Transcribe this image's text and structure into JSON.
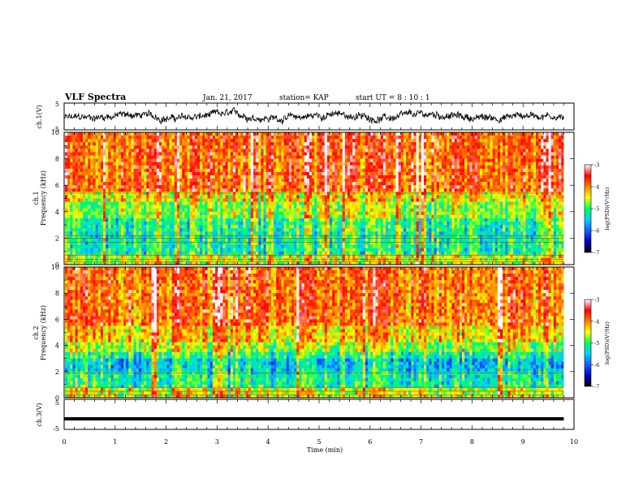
{
  "header": {
    "title": "VLF Spectra",
    "date": "Jan. 21, 2017",
    "station": "station= KAP",
    "start": "start UT =  8 : 10 : 1"
  },
  "chart_data": [
    {
      "type": "line",
      "ylabel": "ch.1(V)",
      "ylim": [
        -5,
        5
      ],
      "yticks": [
        "5",
        "-5"
      ],
      "xlim": [
        0,
        10
      ],
      "trace": "noisy waveform around 0 V, roughly -2..+3 V",
      "grid": false
    },
    {
      "type": "heatmap",
      "ylabel": "ch.1 Frequency (kHz)",
      "ylim": [
        0,
        10
      ],
      "yticks": [
        "0",
        "2",
        "4",
        "6",
        "8",
        "10"
      ],
      "xlim": [
        0,
        9.8
      ],
      "colorbar": {
        "label": "log(PSD)(V²/Hz)",
        "range": [
          -7,
          -3
        ],
        "ticks": [
          "-3",
          "-4",
          "-5",
          "-6",
          "-7"
        ],
        "colors": [
          "#000000",
          "#0000c0",
          "#1a5cff",
          "#00d0ff",
          "#00ff60",
          "#ffff00",
          "#ff8000",
          "#ff0000",
          "#ffffff"
        ]
      }
    },
    {
      "type": "heatmap",
      "ylabel": "ch.2 Frequency (kHz)",
      "ylim": [
        0,
        10
      ],
      "yticks": [
        "0",
        "2",
        "4",
        "6",
        "8",
        "10"
      ],
      "xlim": [
        0,
        9.8
      ],
      "colorbar": {
        "label": "log(PSD)(V²/Hz)",
        "range": [
          -7,
          -3
        ],
        "ticks": [
          "-3",
          "-4",
          "-5",
          "-6",
          "-7"
        ],
        "colors": [
          "#000000",
          "#0000c0",
          "#1a5cff",
          "#00d0ff",
          "#00ff60",
          "#ffff00",
          "#ff8000",
          "#ff0000",
          "#ffffff"
        ]
      }
    },
    {
      "type": "line",
      "ylabel": "ch.3(V)",
      "ylim": [
        -5,
        5
      ],
      "yticks": [
        "5",
        "-5"
      ],
      "xlim": [
        0,
        10
      ],
      "trace": "flat line at about -1.5 V",
      "y_value": -1.5,
      "grid": false
    }
  ],
  "xaxis": {
    "label": "Time (min)",
    "ticks": [
      "0",
      "1",
      "2",
      "3",
      "4",
      "5",
      "6",
      "7",
      "8",
      "9",
      "10"
    ],
    "range": [
      0,
      10
    ]
  }
}
